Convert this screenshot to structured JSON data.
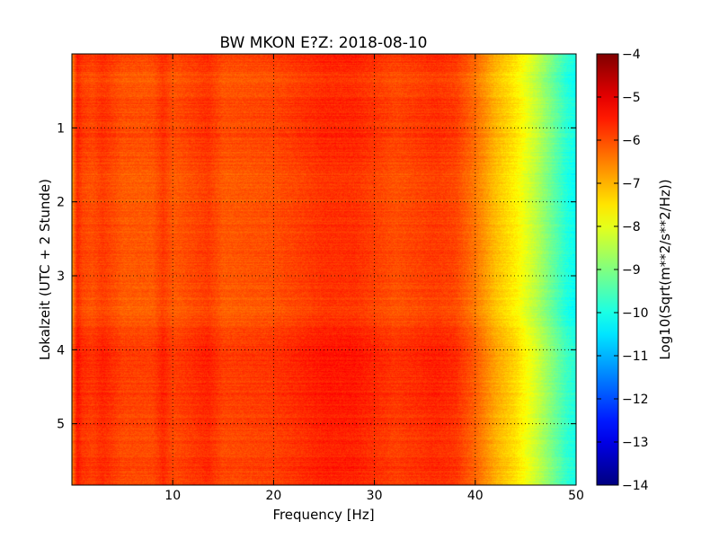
{
  "chart_data": {
    "type": "heatmap",
    "title": "BW MKON E?Z: 2018-08-10",
    "xlabel": "Frequency [Hz]",
    "ylabel": "Lokalzeit (UTC + 2 Stunde)",
    "colorbar_label": "Log10(Sqrt(m**2/s**2/Hz))",
    "xlim": [
      0,
      50
    ],
    "ylim": [
      5.83,
      0
    ],
    "x_ticks": [
      10,
      20,
      30,
      40,
      50
    ],
    "x_tick_labels": [
      "10",
      "20",
      "30",
      "40",
      "50"
    ],
    "y_ticks": [
      1,
      2,
      3,
      4,
      5
    ],
    "y_tick_labels": [
      "1",
      "2",
      "3",
      "4",
      "5"
    ],
    "color_range": [
      -14,
      -4
    ],
    "colorbar_ticks": [
      -4,
      -5,
      -6,
      -7,
      -8,
      -9,
      -10,
      -11,
      -12,
      -13,
      -14
    ],
    "colorbar_tick_labels": [
      "−4",
      "−5",
      "−6",
      "−7",
      "−8",
      "−9",
      "−10",
      "−11",
      "−12",
      "−13",
      "−14"
    ],
    "colormap": "jet",
    "grid": true,
    "frequency_profile": {
      "frequency_hz": [
        0,
        0.5,
        1,
        2,
        3,
        5,
        8,
        9,
        10,
        13.5,
        15,
        20,
        25,
        28,
        32,
        36,
        38,
        40,
        42,
        44,
        45,
        46,
        47,
        48,
        49,
        50
      ],
      "log10_amplitude": [
        -6.4,
        -5.4,
        -5.7,
        -5.8,
        -5.6,
        -5.9,
        -5.9,
        -5.6,
        -5.9,
        -5.6,
        -5.9,
        -5.8,
        -5.5,
        -5.5,
        -5.8,
        -5.6,
        -5.7,
        -6.2,
        -6.9,
        -7.4,
        -7.8,
        -8.2,
        -8.7,
        -9.2,
        -9.7,
        -10.0
      ]
    },
    "time_profile": {
      "hours": [
        0,
        0.3,
        0.6,
        1.2,
        1.7,
        2.0,
        2.3,
        2.8,
        3.2,
        3.5,
        3.9,
        4.3,
        4.8,
        5.3,
        5.6,
        5.83
      ],
      "offset": [
        0.0,
        -0.25,
        -0.1,
        -0.1,
        -0.3,
        -0.25,
        -0.2,
        -0.2,
        -0.25,
        -0.3,
        0.05,
        0.05,
        0.0,
        -0.1,
        0.0,
        -0.1
      ]
    }
  }
}
